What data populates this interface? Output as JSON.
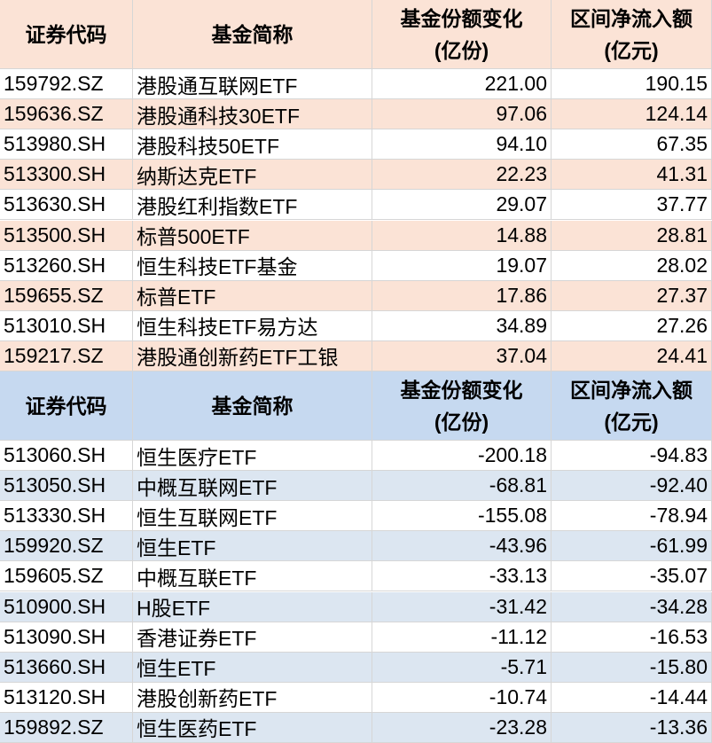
{
  "tables": [
    {
      "header": [
        [
          "证券代码"
        ],
        [
          "基金简称"
        ],
        [
          "基金份额变化",
          "(亿份)"
        ],
        [
          "区间净流入额",
          "(亿元)"
        ]
      ],
      "rows": [
        [
          "159792.SZ",
          "港股通互联网ETF",
          "221.00",
          "190.15"
        ],
        [
          "159636.SZ",
          "港股通科技30ETF",
          "97.06",
          "124.14"
        ],
        [
          "513980.SH",
          "港股科技50ETF",
          "94.10",
          "67.35"
        ],
        [
          "513300.SH",
          "纳斯达克ETF",
          "22.23",
          "41.31"
        ],
        [
          "513630.SH",
          "港股红利指数ETF",
          "29.07",
          "37.77"
        ],
        [
          "513500.SH",
          "标普500ETF",
          "14.88",
          "28.81"
        ],
        [
          "513260.SH",
          "恒生科技ETF基金",
          "19.07",
          "28.02"
        ],
        [
          "159655.SZ",
          "标普ETF",
          "17.86",
          "27.37"
        ],
        [
          "513010.SH",
          "恒生科技ETF易方达",
          "34.89",
          "27.26"
        ],
        [
          "159217.SZ",
          "港股通创新药ETF工银",
          "37.04",
          "24.41"
        ]
      ]
    },
    {
      "header": [
        [
          "证券代码"
        ],
        [
          "基金简称"
        ],
        [
          "基金份额变化",
          "(亿份)"
        ],
        [
          "区间净流入额",
          "(亿元)"
        ]
      ],
      "rows": [
        [
          "513060.SH",
          "恒生医疗ETF",
          "-200.18",
          "-94.83"
        ],
        [
          "513050.SH",
          "中概互联网ETF",
          "-68.81",
          "-92.40"
        ],
        [
          "513330.SH",
          "恒生互联网ETF",
          "-155.08",
          "-78.94"
        ],
        [
          "159920.SZ",
          "恒生ETF",
          "-43.96",
          "-61.99"
        ],
        [
          "159605.SZ",
          "中概互联ETF",
          "-33.13",
          "-35.07"
        ],
        [
          "510900.SH",
          "H股ETF",
          "-31.42",
          "-34.28"
        ],
        [
          "513090.SH",
          "香港证券ETF",
          "-11.12",
          "-16.53"
        ],
        [
          "513660.SH",
          "恒生ETF",
          "-5.71",
          "-15.80"
        ],
        [
          "513120.SH",
          "港股创新药ETF",
          "-10.74",
          "-14.44"
        ],
        [
          "159892.SZ",
          "恒生医药ETF",
          "-23.28",
          "-13.36"
        ]
      ]
    }
  ]
}
